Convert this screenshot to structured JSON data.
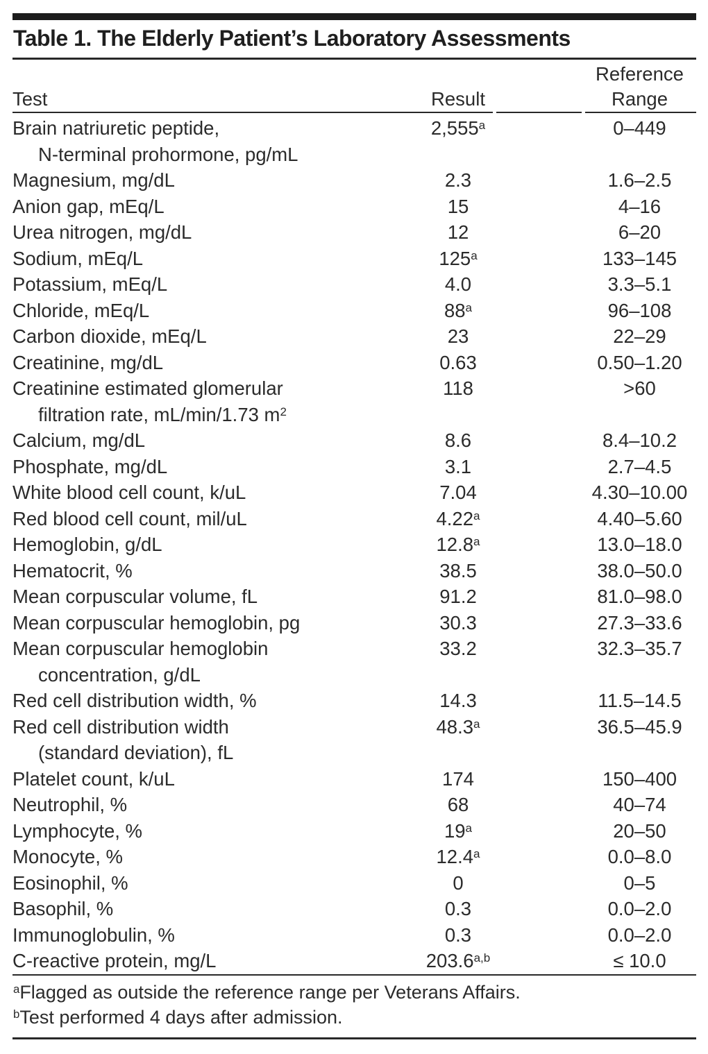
{
  "title": "Table 1. The Elderly Patient’s Laboratory Assessments",
  "table": {
    "headers": {
      "test": "Test",
      "result": "Result",
      "range_line1": "Reference",
      "range_line2": "Range"
    },
    "rows": [
      {
        "test": "Brain natriuretic peptide,",
        "test2": "N-terminal prohormone, pg/mL",
        "result": "2,555",
        "result_sup": "a",
        "range": "0–449"
      },
      {
        "test": "Magnesium, mg/dL",
        "result": "2.3",
        "range": "1.6–2.5"
      },
      {
        "test": "Anion gap, mEq/L",
        "result": "15",
        "range": "4–16"
      },
      {
        "test": "Urea nitrogen, mg/dL",
        "result": "12",
        "range": "6–20"
      },
      {
        "test": "Sodium, mEq/L",
        "result": "125",
        "result_sup": "a",
        "range": "133–145"
      },
      {
        "test": "Potassium, mEq/L",
        "result": "4.0",
        "range": "3.3–5.1"
      },
      {
        "test": "Chloride, mEq/L",
        "result": "88",
        "result_sup": "a",
        "range": "96–108"
      },
      {
        "test": "Carbon dioxide, mEq/L",
        "result": "23",
        "range": "22–29"
      },
      {
        "test": "Creatinine, mg/dL",
        "result": "0.63",
        "range": "0.50–1.20"
      },
      {
        "test": "Creatinine estimated glomerular",
        "test2": "filtration rate, mL/min/1.73 m",
        "test2_sup": "2",
        "result": "118",
        "range": ">60"
      },
      {
        "test": "Calcium, mg/dL",
        "result": "8.6",
        "range": "8.4–10.2"
      },
      {
        "test": "Phosphate, mg/dL",
        "result": "3.1",
        "range": "2.7–4.5"
      },
      {
        "test": "White blood cell count, k/uL",
        "result": "7.04",
        "range": "4.30–10.00"
      },
      {
        "test": "Red blood cell count, mil/uL",
        "result": "4.22",
        "result_sup": "a",
        "range": "4.40–5.60"
      },
      {
        "test": "Hemoglobin, g/dL",
        "result": "12.8",
        "result_sup": "a",
        "range": "13.0–18.0"
      },
      {
        "test": "Hematocrit, %",
        "result": "38.5",
        "range": "38.0–50.0"
      },
      {
        "test": "Mean corpuscular volume, fL",
        "result": "91.2",
        "range": "81.0–98.0"
      },
      {
        "test": "Mean corpuscular hemoglobin, pg",
        "result": "30.3",
        "range": "27.3–33.6"
      },
      {
        "test": "Mean corpuscular hemoglobin",
        "test2": "concentration, g/dL",
        "result": "33.2",
        "range": "32.3–35.7"
      },
      {
        "test": "Red cell distribution width, %",
        "result": "14.3",
        "range": "11.5–14.5"
      },
      {
        "test": "Red cell distribution width",
        "test2": "(standard deviation), fL",
        "result": "48.3",
        "result_sup": "a",
        "range": "36.5–45.9"
      },
      {
        "test": "Platelet count, k/uL",
        "result": "174",
        "range": "150–400"
      },
      {
        "test": "Neutrophil, %",
        "result": "68",
        "range": "40–74"
      },
      {
        "test": "Lymphocyte, %",
        "result": "19",
        "result_sup": "a",
        "range": "20–50"
      },
      {
        "test": "Monocyte, %",
        "result": "12.4",
        "result_sup": "a",
        "range": "0.0–8.0"
      },
      {
        "test": "Eosinophil, %",
        "result": "0",
        "range": "0–5"
      },
      {
        "test": "Basophil, %",
        "result": "0.3",
        "range": "0.0–2.0"
      },
      {
        "test": "Immunoglobulin, %",
        "result": "0.3",
        "range": "0.0–2.0"
      },
      {
        "test": "C-reactive protein, mg/L",
        "result": "203.6",
        "result_sup": "a,b",
        "range": "≤ 10.0"
      }
    ],
    "footnotes": [
      {
        "marker": "a",
        "text": "Flagged as outside the reference range per Veterans Affairs."
      },
      {
        "marker": "b",
        "text": "Test performed 4 days after admission."
      }
    ]
  }
}
